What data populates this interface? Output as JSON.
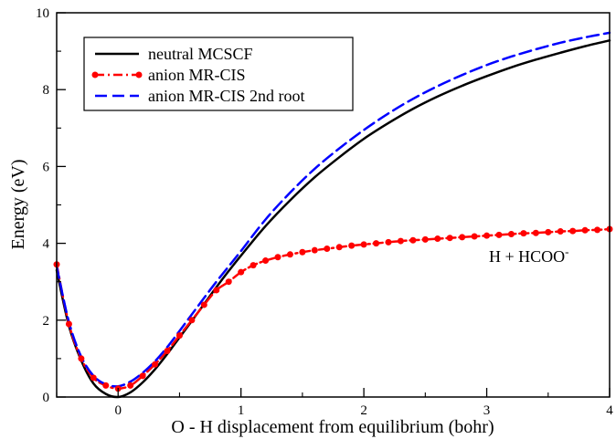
{
  "chart_data": {
    "type": "line",
    "xlabel": "O - H displacement from equilibrium (bohr)",
    "ylabel": "Energy (eV)",
    "xlim": [
      -0.5,
      4
    ],
    "ylim": [
      0,
      10
    ],
    "xticks": [
      0,
      1,
      2,
      3,
      4
    ],
    "yticks": [
      0,
      2,
      4,
      6,
      8,
      10
    ],
    "grid": false,
    "legend_position": "top-left",
    "annotation": {
      "text": "H + HCOO",
      "superscript": "-",
      "at": [
        3.0,
        4.05
      ]
    },
    "series": [
      {
        "name": "neutral MCSCF",
        "color": "#000000",
        "style": "solid",
        "x": [
          -0.5,
          -0.4,
          -0.3,
          -0.2,
          -0.1,
          0.0,
          0.1,
          0.2,
          0.3,
          0.4,
          0.5,
          0.6,
          0.7,
          0.8,
          0.9,
          1.0,
          1.2,
          1.4,
          1.6,
          1.8,
          2.0,
          2.2,
          2.4,
          2.6,
          2.8,
          3.0,
          3.2,
          3.4,
          3.6,
          3.8,
          4.0
        ],
        "y": [
          3.3,
          1.85,
          0.95,
          0.35,
          0.08,
          0.0,
          0.12,
          0.38,
          0.72,
          1.12,
          1.55,
          1.98,
          2.42,
          2.86,
          3.28,
          3.68,
          4.45,
          5.12,
          5.72,
          6.24,
          6.72,
          7.13,
          7.5,
          7.82,
          8.1,
          8.35,
          8.58,
          8.78,
          8.96,
          9.13,
          9.28
        ]
      },
      {
        "name": "anion MR-CIS",
        "color": "#ff0000",
        "style": "dash-dot-markers",
        "x": [
          -0.5,
          -0.4,
          -0.3,
          -0.2,
          -0.1,
          0.0,
          0.1,
          0.2,
          0.3,
          0.4,
          0.5,
          0.6,
          0.7,
          0.8,
          0.9,
          1.0,
          1.1,
          1.2,
          1.3,
          1.4,
          1.5,
          1.6,
          1.7,
          1.8,
          1.9,
          2.0,
          2.1,
          2.2,
          2.3,
          2.4,
          2.5,
          2.6,
          2.7,
          2.8,
          2.9,
          3.0,
          3.1,
          3.2,
          3.3,
          3.4,
          3.5,
          3.6,
          3.7,
          3.8,
          3.9,
          4.0
        ],
        "y": [
          3.45,
          1.9,
          1.0,
          0.5,
          0.3,
          0.22,
          0.3,
          0.55,
          0.85,
          1.2,
          1.6,
          2.0,
          2.4,
          2.78,
          3.0,
          3.25,
          3.43,
          3.55,
          3.64,
          3.71,
          3.77,
          3.82,
          3.86,
          3.9,
          3.94,
          3.97,
          4.0,
          4.03,
          4.06,
          4.08,
          4.1,
          4.12,
          4.14,
          4.16,
          4.18,
          4.2,
          4.22,
          4.24,
          4.26,
          4.27,
          4.29,
          4.31,
          4.32,
          4.34,
          4.35,
          4.37
        ]
      },
      {
        "name": "anion MR-CIS 2nd root",
        "color": "#0000ff",
        "style": "dashed",
        "x": [
          -0.5,
          -0.4,
          -0.3,
          -0.2,
          -0.1,
          0.0,
          0.1,
          0.2,
          0.3,
          0.4,
          0.5,
          0.6,
          0.7,
          0.8,
          0.9,
          1.0,
          1.2,
          1.4,
          1.6,
          1.8,
          2.0,
          2.2,
          2.4,
          2.6,
          2.8,
          3.0,
          3.2,
          3.4,
          3.6,
          3.8,
          4.0
        ],
        "y": [
          3.4,
          1.95,
          1.05,
          0.55,
          0.33,
          0.28,
          0.4,
          0.63,
          0.93,
          1.3,
          1.72,
          2.15,
          2.58,
          3.0,
          3.4,
          3.8,
          4.62,
          5.32,
          5.94,
          6.47,
          6.95,
          7.38,
          7.76,
          8.09,
          8.38,
          8.64,
          8.86,
          9.05,
          9.22,
          9.36,
          9.48
        ]
      }
    ]
  }
}
